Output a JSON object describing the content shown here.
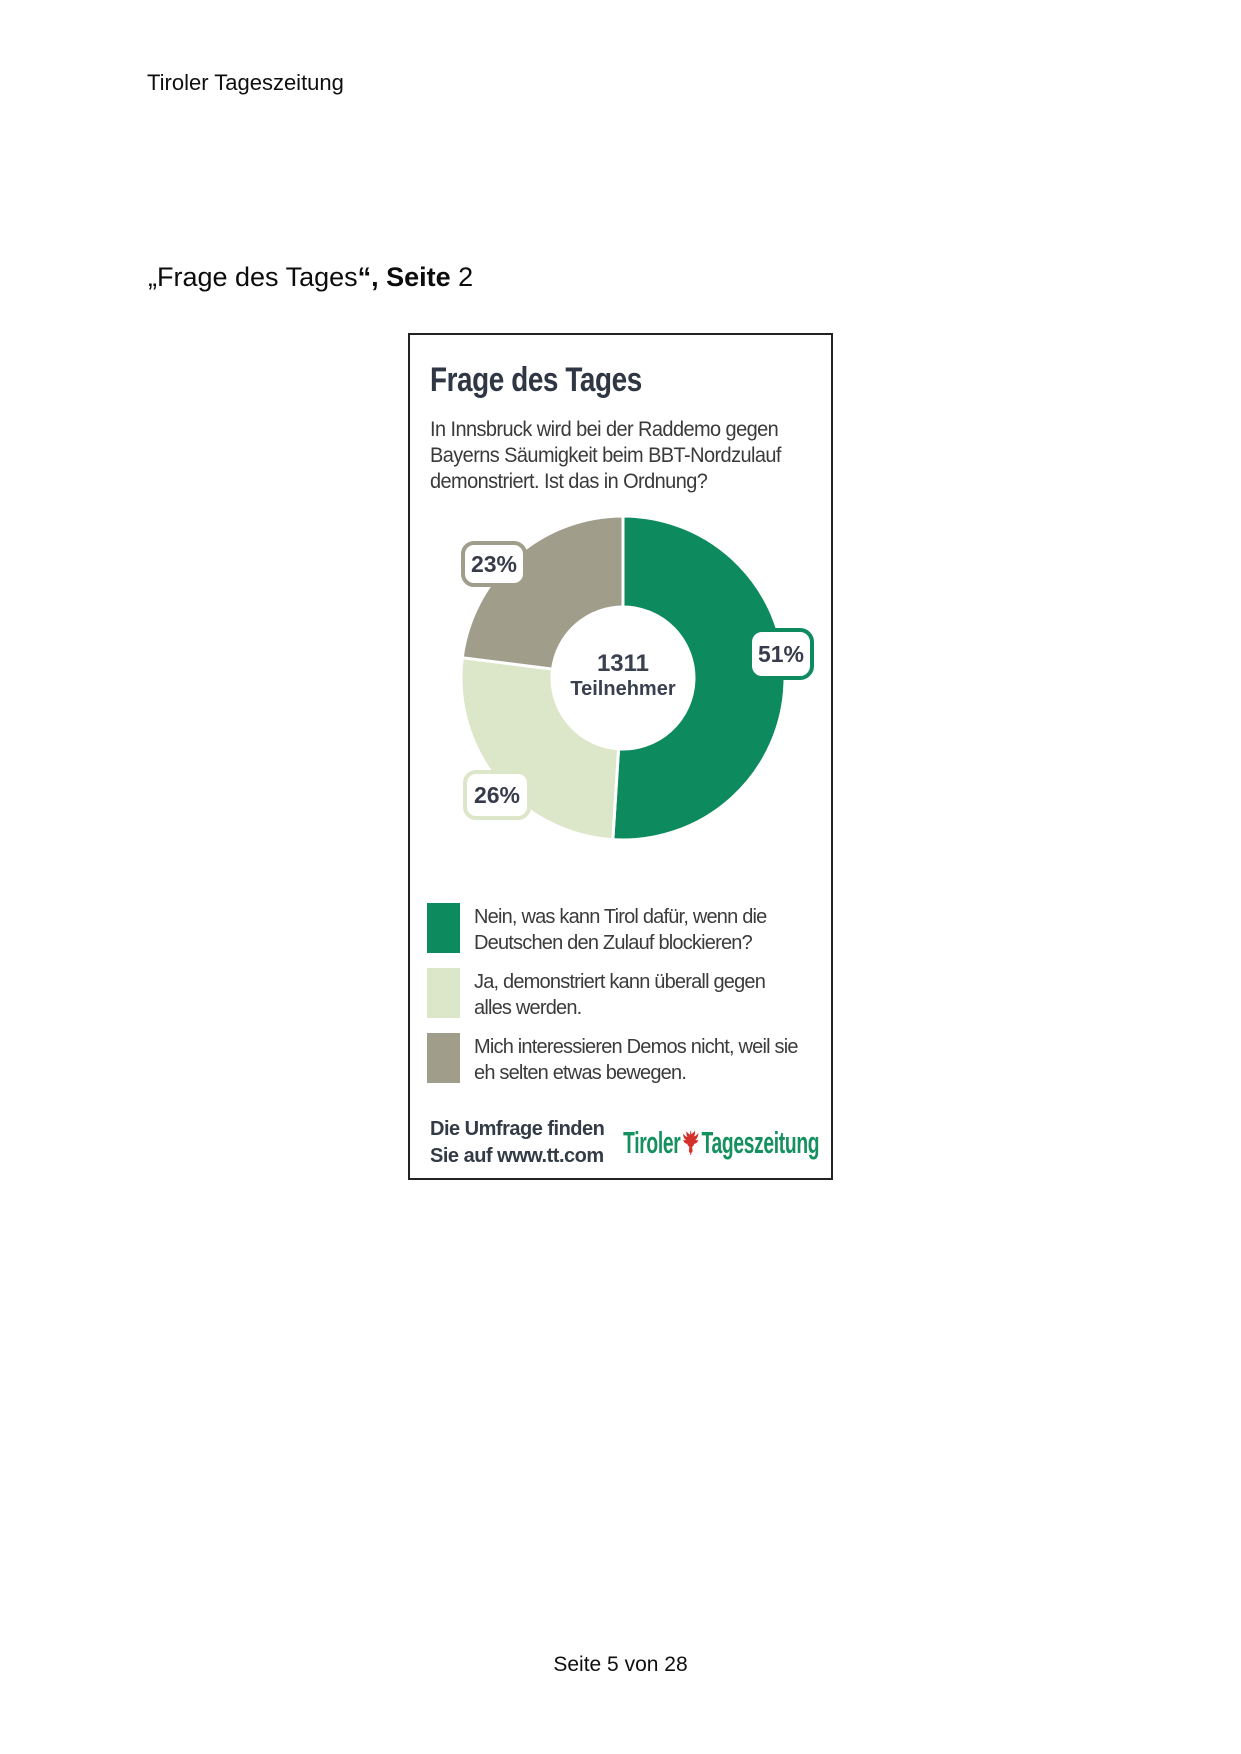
{
  "page": {
    "header": "Tiroler Tageszeitung",
    "heading": {
      "pre": "„Frage des Tages",
      "bold": "“, Seite",
      "post": " 2"
    },
    "footer": "Seite 5 von 28"
  },
  "infographic": {
    "title": "Frage des Tages",
    "question_lines": [
      "In Innsbruck wird bei der Raddemo gegen",
      "Bayerns Säumigkeit beim BBT-Nordzulauf",
      "demonstriert. Ist das in Ordnung?"
    ],
    "footer_note_lines": [
      "Die Umfrage finden",
      "Sie auf www.tt.com"
    ],
    "logo": {
      "part1": "Tiroler",
      "part2": "Tageszeitung",
      "text_color": "#15905f",
      "eagle_color": "#d4312a"
    }
  },
  "chart_data": {
    "type": "pie",
    "donut": true,
    "title": "Frage des Tages",
    "start_angle": "12 o'clock",
    "direction": "clockwise",
    "center": {
      "value": "1311",
      "label": "Teilnehmer"
    },
    "slices": [
      {
        "pct_label": "51%",
        "value": 51,
        "color": "#0d8a5e",
        "legend_lines": [
          "Nein, was kann Tirol dafür, wenn die",
          "Deutschen den Zulauf blockieren?"
        ]
      },
      {
        "pct_label": "26%",
        "value": 26,
        "color": "#dce6c8",
        "legend_lines": [
          "Ja, demonstriert kann überall gegen",
          "alles werden."
        ]
      },
      {
        "pct_label": "23%",
        "value": 23,
        "color": "#a09d8b",
        "legend_lines": [
          "Mich interessieren Demos nicht, weil sie",
          "eh selten etwas bewegen."
        ]
      }
    ]
  }
}
